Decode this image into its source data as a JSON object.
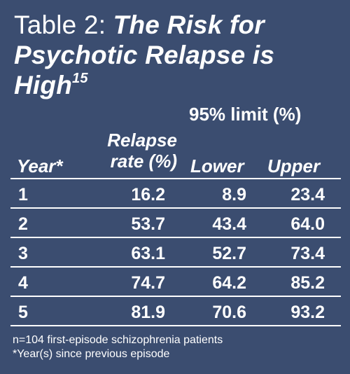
{
  "title": {
    "prefix": "Table 2: ",
    "emphasis": "The Risk for Psychotic Relapse is High",
    "superscript": "15"
  },
  "headers": {
    "limit_group": "95% limit (%)",
    "year": "Year*",
    "relapse_rate": "Relapse rate (%)",
    "lower": "Lower",
    "upper": "Upper"
  },
  "rows": [
    {
      "year": "1",
      "rate": "16.2",
      "lower": "8.9",
      "upper": "23.4"
    },
    {
      "year": "2",
      "rate": "53.7",
      "lower": "43.4",
      "upper": "64.0"
    },
    {
      "year": "3",
      "rate": "63.1",
      "lower": "52.7",
      "upper": "73.4"
    },
    {
      "year": "4",
      "rate": "74.7",
      "lower": "64.2",
      "upper": "85.2"
    },
    {
      "year": "5",
      "rate": "81.9",
      "lower": "70.6",
      "upper": "93.2"
    }
  ],
  "footnotes": {
    "line1": "n=104 first-episode schizophrenia patients",
    "line2": "*Year(s) since previous episode"
  },
  "colors": {
    "background": "#3b4d70",
    "text": "#ffffff"
  }
}
